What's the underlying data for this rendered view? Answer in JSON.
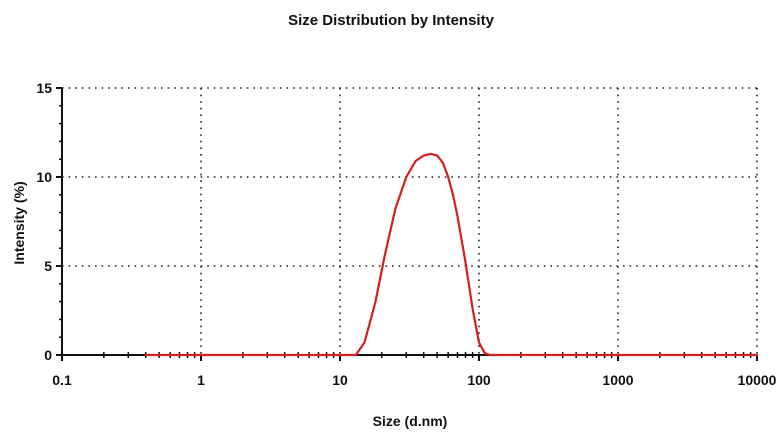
{
  "chart_data": {
    "type": "line",
    "title": "Size Distribution by Intensity",
    "xlabel": "Size (d.nm)",
    "ylabel": "Intensity (%)",
    "x_scale": "log",
    "xlim": [
      0.1,
      10000
    ],
    "ylim": [
      0,
      15
    ],
    "x_ticks": [
      0.1,
      1,
      10,
      100,
      1000,
      10000
    ],
    "x_tick_labels": [
      "0.1",
      "1",
      "10",
      "100",
      "1000",
      "10000"
    ],
    "y_ticks": [
      0,
      5,
      10,
      15
    ],
    "y_tick_labels": [
      "0",
      "5",
      "10",
      "15"
    ],
    "grid": true,
    "grid_style": "dotted",
    "series": [
      {
        "color": "#d21f1f",
        "x": [
          0.4,
          10,
          13,
          15,
          18,
          21,
          25,
          30,
          35,
          40,
          45,
          50,
          55,
          60,
          65,
          70,
          80,
          90,
          100,
          110,
          120,
          140,
          200,
          500,
          1000,
          5000,
          10000
        ],
        "y": [
          0,
          0,
          0,
          0.7,
          3.0,
          5.6,
          8.2,
          10.0,
          10.9,
          11.2,
          11.3,
          11.2,
          10.8,
          10.0,
          9.0,
          7.8,
          5.2,
          2.6,
          0.7,
          0.1,
          0,
          0,
          0,
          0,
          0,
          0,
          0
        ]
      }
    ]
  }
}
